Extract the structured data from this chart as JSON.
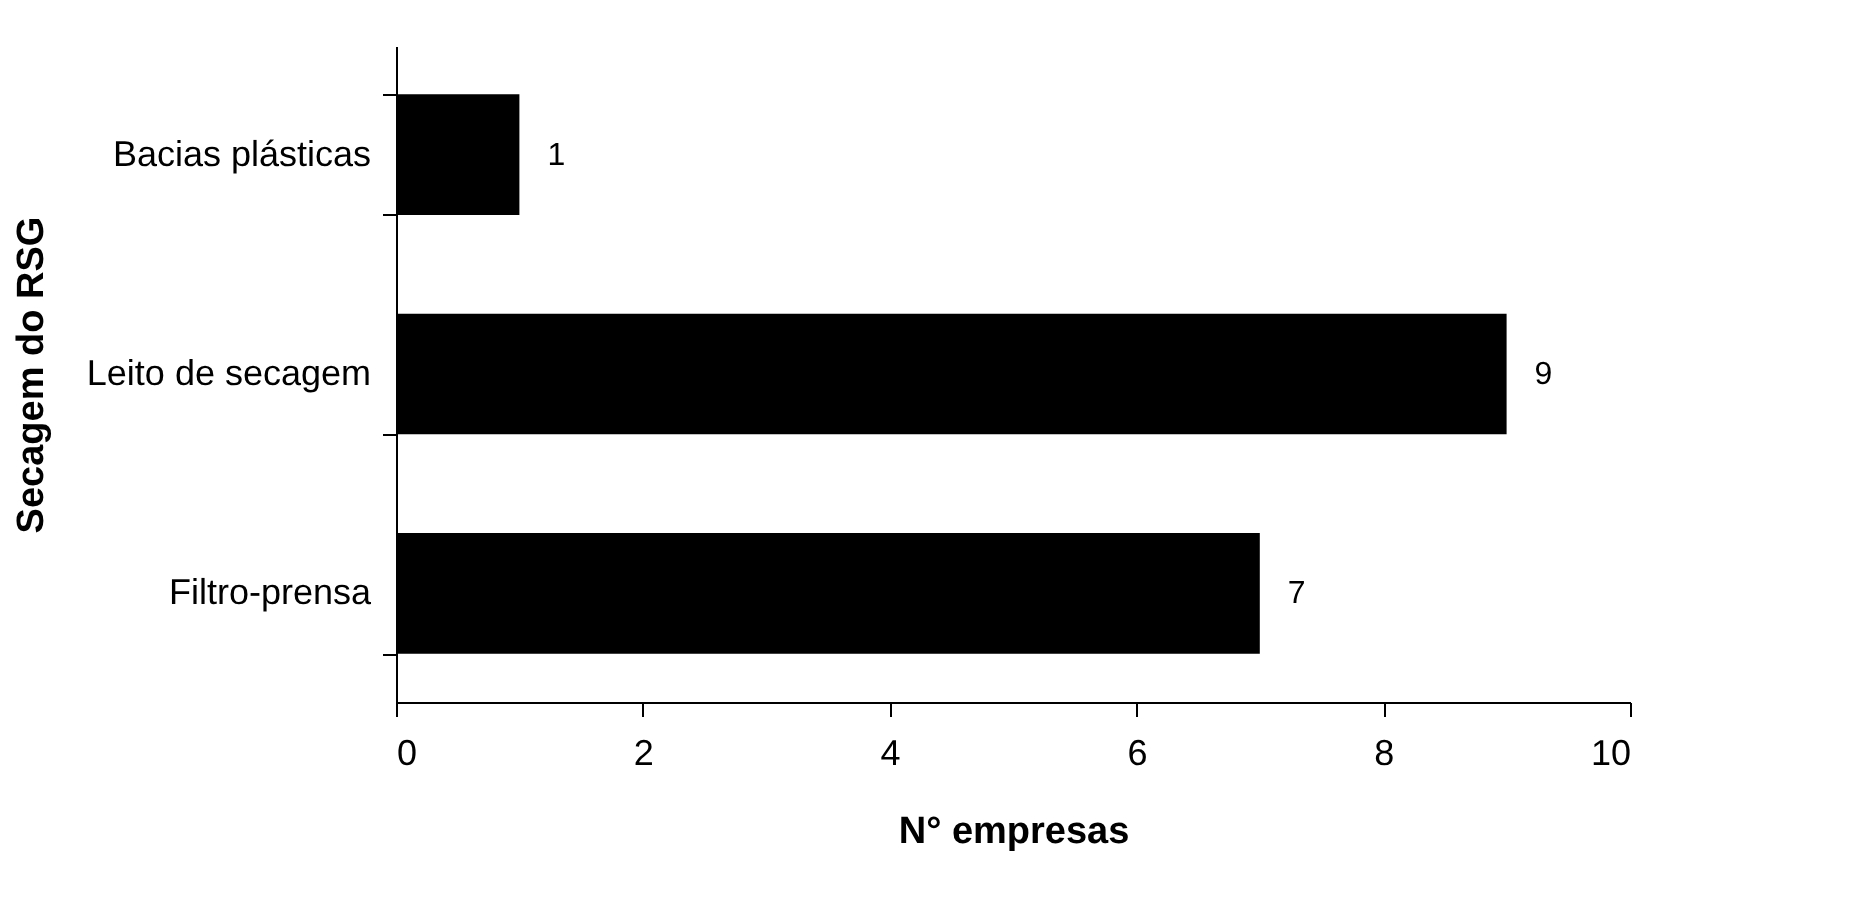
{
  "chart_data": {
    "type": "bar",
    "orientation": "horizontal",
    "categories": [
      "Bacias plásticas",
      "Leito de secagem",
      "Filtro-prensa"
    ],
    "values": [
      1,
      9,
      7
    ],
    "color": "#000000",
    "xlim": [
      0,
      10
    ],
    "xticks": [
      0,
      2,
      4,
      6,
      8,
      10
    ],
    "xlabel": "N° empresas",
    "ylabel": "Secagem do RSG",
    "data_labels": true,
    "grid": false
  }
}
